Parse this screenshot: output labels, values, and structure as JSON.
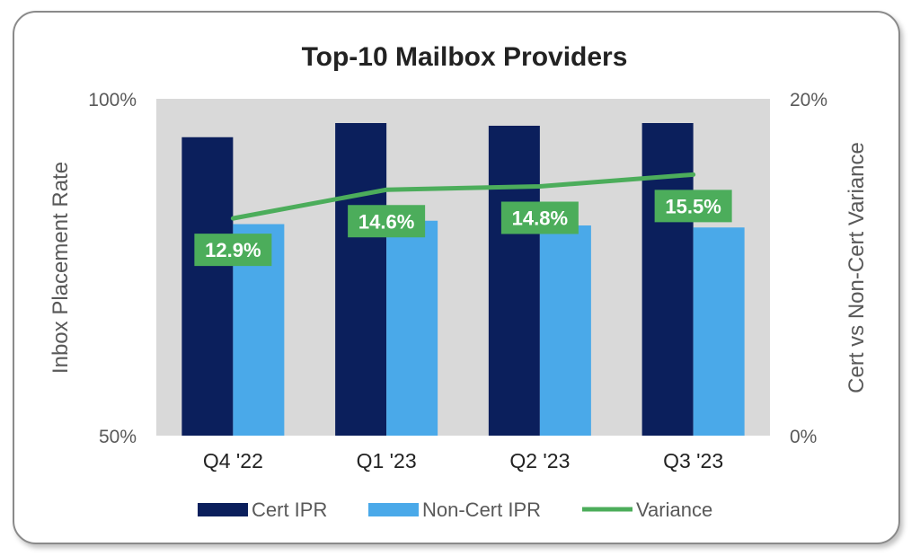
{
  "chart_data": {
    "type": "bar",
    "title": "Top-10 Mailbox Providers",
    "categories": [
      "Q4 '22",
      "Q1 '23",
      "Q2 '23",
      "Q3 '23"
    ],
    "ylabel": "Inbox Placement Rate",
    "y2label": "Cert vs Non-Cert Variance",
    "ylim": [
      50,
      100
    ],
    "y2lim": [
      0,
      20
    ],
    "yticks": [
      "100%",
      "50%"
    ],
    "y2ticks": [
      "20%",
      "0%"
    ],
    "series": [
      {
        "name": "Cert IPR",
        "type": "bar",
        "axis": "left",
        "color": "#0b1f5c",
        "values": [
          94.3,
          96.4,
          96.0,
          96.4
        ]
      },
      {
        "name": "Non-Cert IPR",
        "type": "bar",
        "axis": "left",
        "color": "#4aa9e9",
        "values": [
          81.4,
          81.9,
          81.2,
          80.9
        ]
      },
      {
        "name": "Variance",
        "type": "line",
        "axis": "right",
        "color": "#4cad5b",
        "values": [
          12.9,
          14.6,
          14.8,
          15.5
        ],
        "labels": [
          "12.9%",
          "14.6%",
          "14.8%",
          "15.5%"
        ]
      }
    ],
    "legend": {
      "position": "bottom",
      "items": [
        "Cert IPR",
        "Non-Cert IPR",
        "Variance"
      ]
    },
    "plot_background": "#d9d9d9"
  }
}
